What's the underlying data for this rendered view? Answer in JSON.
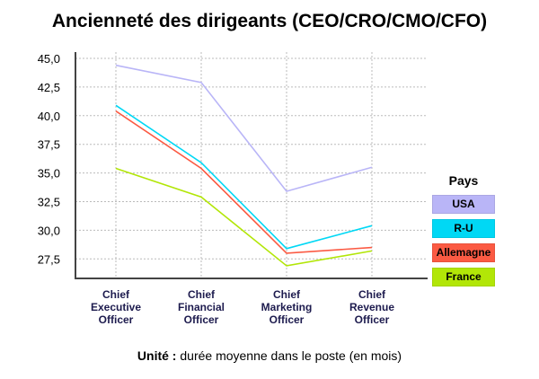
{
  "chart_data": {
    "type": "line",
    "title": "Ancienneté des dirigeants (CEO/CRO/CMO/CFO)",
    "categories": [
      [
        "Chief",
        "Executive",
        "Officer"
      ],
      [
        "Chief",
        "Financial",
        "Officer"
      ],
      [
        "Chief",
        "Marketing",
        "Officer"
      ],
      [
        "Chief",
        "Revenue",
        "Officer"
      ]
    ],
    "yticks": [
      "45,0",
      "42,5",
      "40,0",
      "37,5",
      "35,0",
      "32,5",
      "30,0",
      "27,5"
    ],
    "ytick_values": [
      45,
      42.5,
      40,
      37.5,
      35,
      32.5,
      30,
      27.5
    ],
    "ylim": [
      25.8,
      45.6
    ],
    "grid": true,
    "legend_title": "Pays",
    "legend_placement": "right",
    "series": [
      {
        "name": "USA",
        "color": "#b9b5f7",
        "values": [
          44.4,
          42.9,
          33.4,
          35.5
        ]
      },
      {
        "name": "R-U",
        "color": "#00d8f5",
        "values": [
          40.9,
          35.9,
          28.4,
          30.4
        ]
      },
      {
        "name": "Allemagne",
        "color": "#fb5a43",
        "values": [
          40.4,
          35.4,
          28.0,
          28.5
        ]
      },
      {
        "name": "France",
        "color": "#b2e607",
        "values": [
          35.4,
          32.9,
          26.9,
          28.2
        ]
      }
    ],
    "unit_label": "Unité :",
    "unit_text": " durée moyenne dans le poste (en mois)"
  }
}
